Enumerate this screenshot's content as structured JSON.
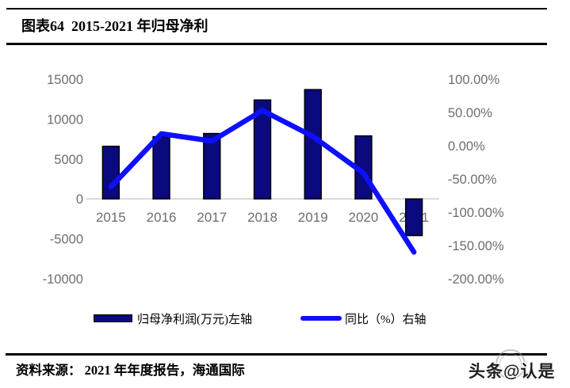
{
  "header": {
    "title": "图表64  2015-2021 年归母净利"
  },
  "chart_data": {
    "type": "combo",
    "title": "图表64  2015-2021 年归母净利",
    "categories": [
      "2015",
      "2016",
      "2017",
      "2018",
      "2019",
      "2020",
      "2021"
    ],
    "series": [
      {
        "name": "归母净利润(万元)左轴",
        "type": "bar",
        "axis": "left",
        "values": [
          6600,
          7800,
          8200,
          12400,
          13700,
          7900,
          -4600
        ]
      },
      {
        "name": "同比（%）右轴",
        "type": "line",
        "axis": "right",
        "values": [
          -62,
          18,
          7,
          53,
          14,
          -41,
          -160
        ]
      }
    ],
    "left_axis": {
      "min": -10000,
      "max": 15000,
      "tick_values": [
        15000,
        10000,
        5000,
        0,
        -5000,
        -10000
      ],
      "tick_labels": [
        "15000",
        "10000",
        "5000",
        "0",
        "-5000",
        "-10000"
      ]
    },
    "right_axis": {
      "min": -200,
      "max": 100,
      "tick_values": [
        100,
        50,
        0,
        -50,
        -100,
        -150,
        -200
      ],
      "tick_labels": [
        "100.00%",
        "50.00%",
        "0.00%",
        "-50.00%",
        "-100.00%",
        "-150.00%",
        "-200.00%"
      ]
    },
    "grid": false,
    "legend_position": "bottom"
  },
  "footer": {
    "source": "资料来源： 2021 年年度报告，海通国际",
    "watermark": "头条@认是"
  },
  "colors": {
    "bar_fill": "#0A0A7E",
    "bar_stroke": "#000000",
    "line": "#0F0FFF",
    "axis_label": "#6E6E6E",
    "axis_line": "#D9D9D9",
    "rule": "#000000"
  }
}
